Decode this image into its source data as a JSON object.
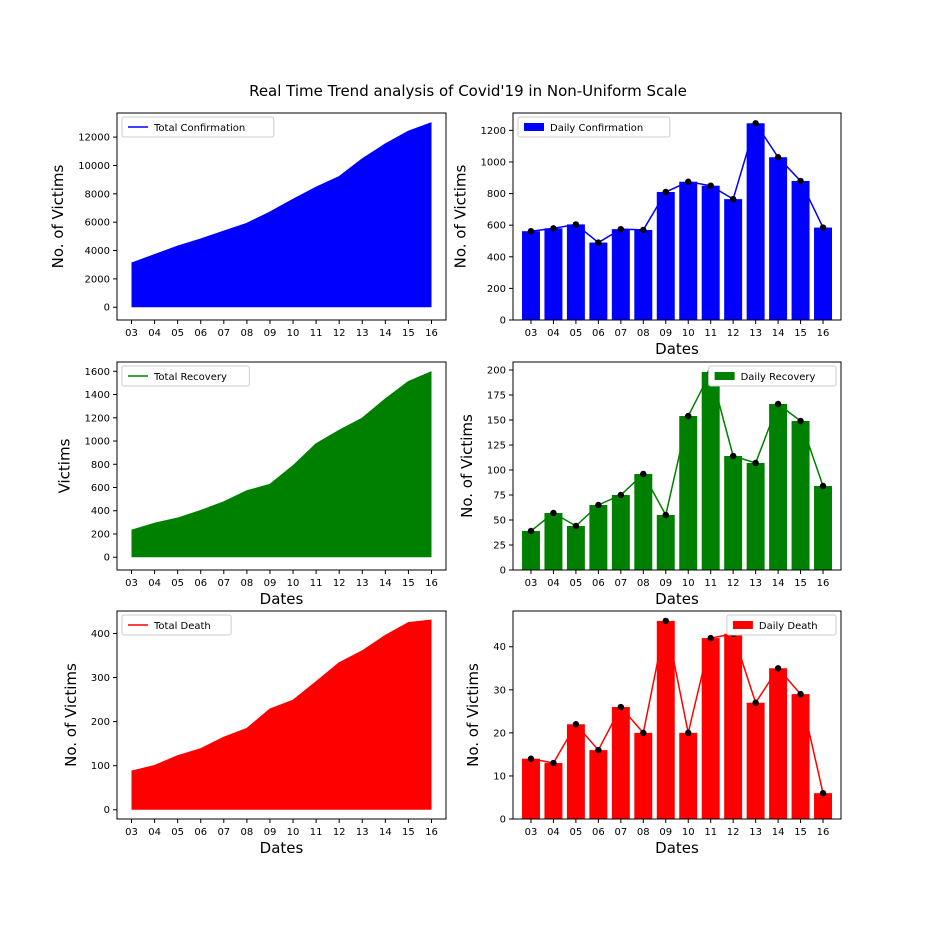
{
  "figure": {
    "title": "Real Time Trend analysis of Covid'19 in Non-Uniform Scale"
  },
  "chart_data": [
    {
      "type": "area",
      "legend": "Total Confirmation",
      "legend_position": "top-left",
      "color": "#0000ff",
      "xlabel": "",
      "ylabel": "No. of Victims",
      "categories": [
        "03",
        "04",
        "05",
        "06",
        "07",
        "08",
        "09",
        "10",
        "11",
        "12",
        "13",
        "14",
        "15",
        "16"
      ],
      "values": [
        3100,
        3700,
        4300,
        4800,
        5350,
        5900,
        6700,
        7600,
        8450,
        9200,
        10450,
        11500,
        12400,
        13000
      ],
      "yticks": [
        0,
        2000,
        4000,
        6000,
        8000,
        10000,
        12000
      ],
      "ylim": [
        -900,
        13700
      ],
      "grid": false
    },
    {
      "type": "bar",
      "legend": "Daily Confirmation",
      "legend_position": "top-left",
      "color": "#0000ff",
      "xlabel": "Dates",
      "ylabel": "No. of Victims",
      "categories": [
        "03",
        "04",
        "05",
        "06",
        "07",
        "08",
        "09",
        "10",
        "11",
        "12",
        "13",
        "14",
        "15",
        "16"
      ],
      "values": [
        562,
        580,
        605,
        490,
        575,
        570,
        810,
        875,
        850,
        765,
        1245,
        1030,
        880,
        585
      ],
      "overlay_line": true,
      "yticks": [
        0,
        200,
        400,
        600,
        800,
        1000,
        1200
      ],
      "ylim": [
        0,
        1310
      ],
      "grid": false
    },
    {
      "type": "area",
      "legend": "Total Recovery",
      "legend_position": "top-left",
      "color": "#008000",
      "xlabel": "Dates",
      "ylabel": "Victims",
      "categories": [
        "03",
        "04",
        "05",
        "06",
        "07",
        "08",
        "09",
        "10",
        "11",
        "12",
        "13",
        "14",
        "15",
        "16"
      ],
      "values": [
        230,
        290,
        335,
        400,
        475,
        570,
        625,
        785,
        975,
        1090,
        1195,
        1360,
        1510,
        1595
      ],
      "yticks": [
        0,
        200,
        400,
        600,
        800,
        1000,
        1200,
        1400,
        1600
      ],
      "ylim": [
        -110,
        1680
      ],
      "grid": false
    },
    {
      "type": "bar",
      "legend": "Daily Recovery",
      "legend_position": "top-right",
      "color": "#008000",
      "xlabel": "Dates",
      "ylabel": "No. of Victims",
      "categories": [
        "03",
        "04",
        "05",
        "06",
        "07",
        "08",
        "09",
        "10",
        "11",
        "12",
        "13",
        "14",
        "15",
        "16"
      ],
      "values": [
        39,
        57,
        44,
        65,
        75,
        96,
        55,
        154,
        198,
        114,
        107,
        166,
        149,
        84
      ],
      "overlay_line": true,
      "yticks": [
        0,
        25,
        50,
        75,
        100,
        125,
        150,
        175,
        200
      ],
      "ylim": [
        0,
        208
      ],
      "grid": false
    },
    {
      "type": "area",
      "legend": "Total Death",
      "legend_position": "top-left",
      "color": "#ff0000",
      "xlabel": "Dates",
      "ylabel": "No. of Victims",
      "categories": [
        "03",
        "04",
        "05",
        "06",
        "07",
        "08",
        "09",
        "10",
        "11",
        "12",
        "13",
        "14",
        "15",
        "16"
      ],
      "values": [
        87,
        100,
        122,
        138,
        164,
        184,
        228,
        248,
        290,
        333,
        360,
        395,
        424,
        430
      ],
      "yticks": [
        0,
        100,
        200,
        300,
        400
      ],
      "ylim": [
        -21,
        451
      ],
      "grid": false
    },
    {
      "type": "bar",
      "legend": "Daily Death",
      "legend_position": "top-right",
      "color": "#ff0000",
      "xlabel": "Dates",
      "ylabel": "No. of Victims",
      "categories": [
        "03",
        "04",
        "05",
        "06",
        "07",
        "08",
        "09",
        "10",
        "11",
        "12",
        "13",
        "14",
        "15",
        "16"
      ],
      "values": [
        14,
        13,
        22,
        16,
        26,
        20,
        46,
        20,
        42,
        43,
        27,
        35,
        29,
        6
      ],
      "overlay_line": true,
      "yticks": [
        0,
        10,
        20,
        30,
        40
      ],
      "ylim": [
        0,
        48.3
      ],
      "grid": false
    }
  ]
}
